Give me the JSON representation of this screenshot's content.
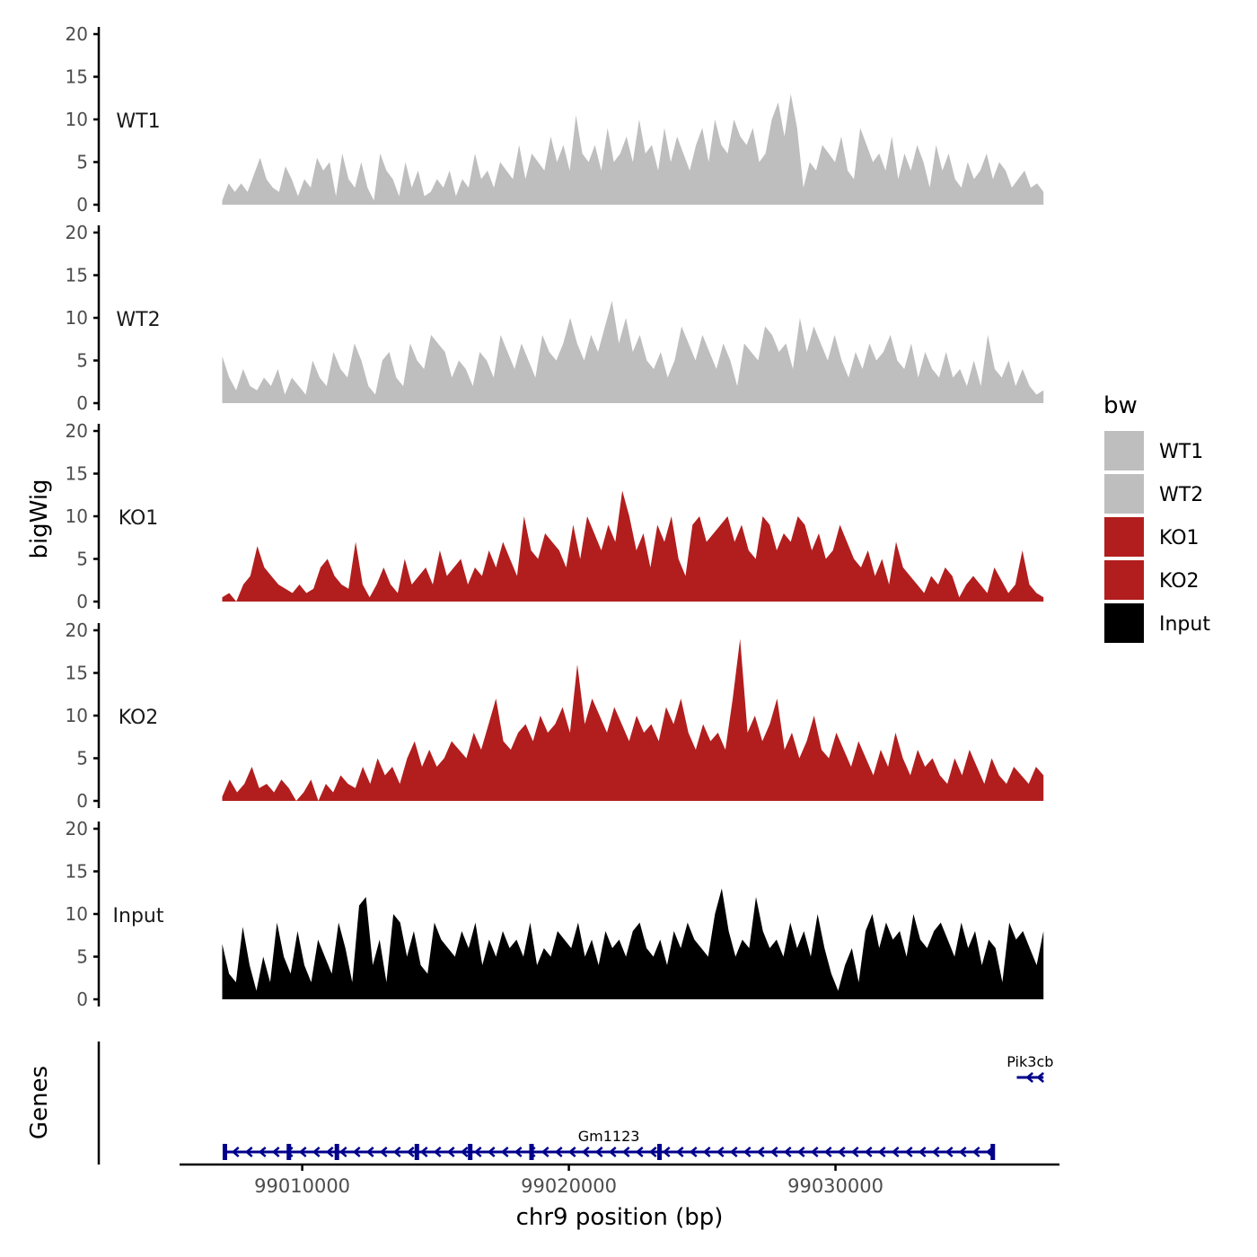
{
  "chart_data": {
    "type": "area",
    "xlabel": "chr9 position (bp)",
    "ylabel": "bigWig",
    "genes_label": "Genes",
    "xlim": [
      99005400,
      99038400
    ],
    "x_ticks": [
      99010000,
      99020000,
      99030000
    ],
    "x_tick_labels": [
      "99010000",
      "99020000",
      "99030000"
    ],
    "ylim": [
      0,
      20
    ],
    "y_ticks": [
      0,
      5,
      10,
      15,
      20
    ],
    "y_tick_labels": [
      "0",
      "5",
      "10",
      "15",
      "20"
    ],
    "track_start": 99007000,
    "track_end": 99037800,
    "legend": {
      "title": "bw",
      "entries": [
        {
          "label": "WT1",
          "color": "#bebebe"
        },
        {
          "label": "WT2",
          "color": "#bebebe"
        },
        {
          "label": "KO1",
          "color": "#b21e1e"
        },
        {
          "label": "KO2",
          "color": "#b21e1e"
        },
        {
          "label": "Input",
          "color": "#000000"
        }
      ]
    },
    "series": [
      {
        "name": "WT1",
        "color": "#bebebe",
        "values": [
          0.5,
          2.5,
          1.5,
          2.5,
          1.5,
          3.5,
          5.5,
          3,
          2,
          1.5,
          4.5,
          3,
          1,
          3,
          2,
          5.5,
          4,
          5,
          1,
          6,
          3,
          2,
          5,
          2,
          0.5,
          6,
          4,
          3,
          1,
          5,
          2,
          4,
          1,
          1.5,
          3,
          2,
          4,
          1,
          3,
          2,
          6,
          3,
          4,
          2,
          5,
          4,
          3,
          7,
          3,
          6,
          5,
          4,
          8,
          5,
          7,
          4,
          10.5,
          6,
          5,
          7,
          4,
          9,
          5,
          6,
          8,
          5,
          10,
          6,
          7,
          4,
          9,
          5,
          8,
          6,
          4,
          7,
          9,
          5,
          10,
          7,
          6,
          10,
          8,
          7,
          9,
          5,
          6,
          10,
          12,
          8,
          13,
          9,
          2,
          5,
          4,
          7,
          6,
          5,
          8,
          4,
          3,
          9,
          7,
          5,
          6,
          4,
          8,
          3,
          6,
          4,
          7,
          5,
          2,
          7,
          4,
          6,
          3,
          2,
          5,
          3,
          4,
          6,
          3,
          5,
          4,
          2,
          3,
          4,
          2,
          2.5,
          1.5
        ]
      },
      {
        "name": "WT2",
        "color": "#bebebe",
        "values": [
          5.5,
          3,
          1.5,
          4,
          2,
          1.5,
          3,
          2,
          4,
          1,
          3,
          2,
          1,
          5,
          3,
          2,
          6,
          4,
          3,
          7,
          5,
          2,
          1,
          5,
          6,
          3,
          2,
          7,
          5,
          4,
          8,
          7,
          6,
          3,
          5,
          4,
          2,
          6,
          5,
          3,
          8,
          6,
          4,
          7,
          5,
          3,
          8,
          6,
          5,
          7,
          10,
          7,
          5,
          8,
          6,
          9,
          12,
          7,
          10,
          6,
          8,
          5,
          4,
          6,
          3,
          5,
          9,
          7,
          5,
          8,
          6,
          4,
          7,
          5,
          2,
          7,
          6,
          5,
          9,
          8,
          6,
          7,
          4,
          10,
          6,
          9,
          7,
          5,
          8,
          5,
          3,
          6,
          4,
          7,
          5,
          6,
          8,
          5,
          4,
          7,
          3,
          6,
          4,
          3,
          6,
          3,
          4,
          2,
          5,
          2,
          8,
          4,
          3,
          5,
          2,
          4,
          2,
          1,
          1.5
        ]
      },
      {
        "name": "KO1",
        "color": "#b21e1e",
        "values": [
          0.5,
          1,
          0,
          2,
          3,
          6.5,
          4,
          3,
          2,
          1.5,
          1,
          2,
          1,
          1.5,
          4,
          5,
          3,
          2,
          1.5,
          7,
          2,
          0.5,
          2,
          4,
          2,
          1,
          5,
          2,
          3,
          4,
          2,
          6,
          3,
          4,
          5,
          2,
          4,
          3,
          6,
          4,
          7,
          5,
          3,
          10,
          6,
          5,
          8,
          7,
          6,
          4,
          9,
          5,
          10,
          8,
          6,
          9,
          7,
          13,
          10,
          6,
          8,
          4,
          9,
          7,
          10,
          5,
          3,
          9,
          10,
          7,
          8,
          9,
          10,
          7,
          9,
          6,
          5,
          10,
          9,
          6,
          8,
          7,
          10,
          9,
          6,
          8,
          5,
          6,
          9,
          7,
          5,
          4,
          6,
          3,
          5,
          2,
          7,
          4,
          3,
          2,
          1,
          3,
          2,
          4,
          3,
          0.5,
          2,
          3,
          2,
          1,
          4,
          2.5,
          1,
          2,
          6,
          2,
          1,
          0.5
        ]
      },
      {
        "name": "KO2",
        "color": "#b21e1e",
        "values": [
          0.5,
          2.5,
          1,
          2,
          4,
          1.5,
          2,
          1,
          2.5,
          1.5,
          0,
          1,
          2.5,
          0,
          2,
          1,
          3,
          2,
          1.5,
          4,
          2,
          5,
          3,
          4,
          2,
          5,
          7,
          4,
          6,
          4,
          5,
          7,
          6,
          5,
          8,
          6,
          9,
          12,
          7,
          6,
          8,
          9,
          7,
          10,
          8,
          9,
          11,
          8,
          16,
          9,
          12,
          10,
          8,
          11,
          9,
          7,
          10,
          8,
          9,
          7,
          11,
          9,
          12,
          8,
          6,
          9,
          7,
          8,
          6,
          12,
          19,
          8,
          10,
          7,
          9,
          12,
          6,
          8,
          5,
          7,
          10,
          6,
          5,
          8,
          6,
          4,
          7,
          5,
          3,
          6,
          4,
          8,
          5,
          3,
          6,
          4,
          5,
          3,
          2,
          5,
          3,
          6,
          4,
          2,
          5,
          3,
          2,
          4,
          3,
          2,
          4,
          3
        ]
      },
      {
        "name": "Input",
        "color": "#000000",
        "values": [
          6.5,
          3,
          2,
          8.5,
          4,
          1,
          5,
          2,
          9,
          5,
          3,
          8,
          4,
          2,
          7,
          5,
          3,
          9,
          6,
          2,
          11,
          12,
          4,
          7,
          2,
          10,
          9,
          5,
          8,
          4,
          3,
          9,
          7,
          6,
          5,
          8,
          6,
          9,
          4,
          7,
          5,
          8,
          6,
          7,
          5,
          9,
          4,
          6,
          5,
          8,
          7,
          6,
          9,
          5,
          7,
          4,
          8,
          6,
          7,
          5,
          8,
          9,
          6,
          5,
          7,
          4,
          8,
          6,
          9,
          7,
          6,
          5,
          10,
          13,
          8,
          5,
          7,
          6,
          12,
          8,
          6,
          7,
          5,
          9,
          6,
          8,
          5,
          10,
          6,
          3,
          1,
          4,
          6,
          2,
          8,
          10,
          6,
          9,
          7,
          8,
          5,
          10,
          7,
          6,
          8,
          9,
          7,
          5,
          9,
          6,
          8,
          4,
          7,
          6,
          2,
          9,
          7,
          8,
          6,
          4,
          8
        ]
      }
    ],
    "genes": [
      {
        "name": "Gm1123",
        "start": 99007100,
        "end": 99035900,
        "strand": "-",
        "exons": [
          99007100,
          99009500,
          99011300,
          99014300,
          99016300,
          99018600,
          99023400,
          99035900
        ]
      },
      {
        "name": "Pik3cb",
        "start": 99036800,
        "end": 99037800,
        "strand": "-",
        "exons": []
      }
    ],
    "gene_color": "#00008b"
  }
}
